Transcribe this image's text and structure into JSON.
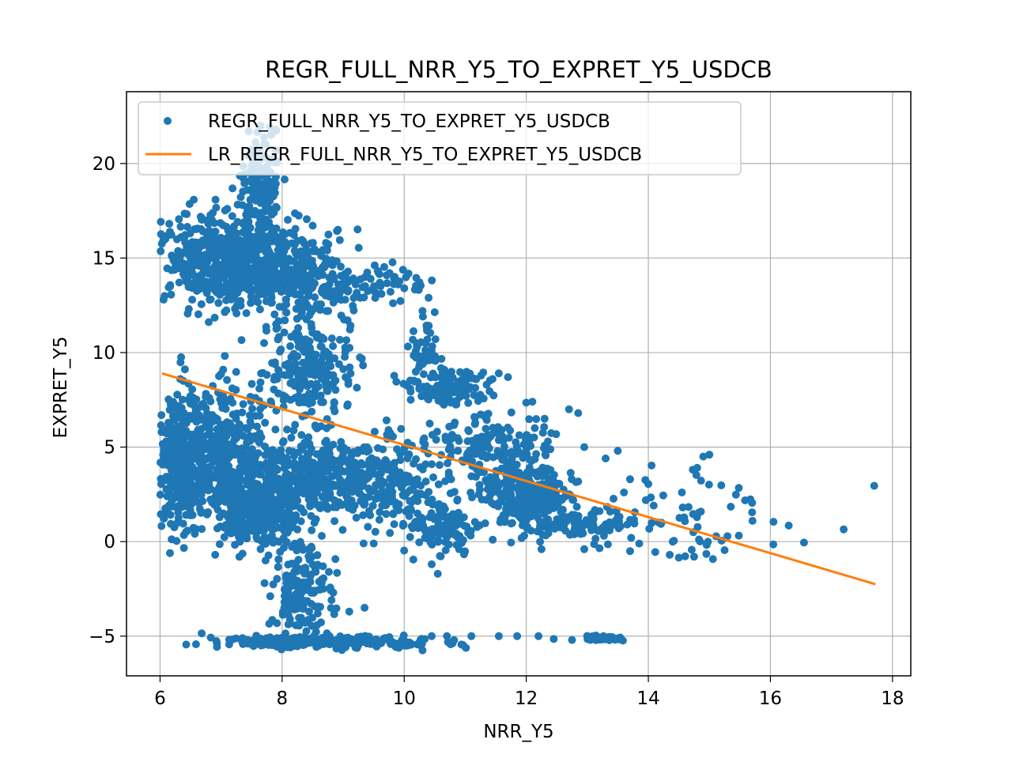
{
  "chart_data": {
    "type": "scatter",
    "title": "REGR_FULL_NRR_Y5_TO_EXPRET_Y5_USDCB",
    "xlabel": "NRR_Y5",
    "ylabel": "EXPRET_Y5",
    "xlim": [
      5.45,
      18.3
    ],
    "ylim": [
      -7.1,
      23.8
    ],
    "x_ticks": [
      6,
      8,
      10,
      12,
      14,
      16,
      18
    ],
    "y_ticks": [
      -5,
      0,
      5,
      10,
      15,
      20
    ],
    "x_tick_labels": [
      "6",
      "8",
      "10",
      "12",
      "14",
      "16",
      "18"
    ],
    "y_tick_labels": [
      "−5",
      "0",
      "5",
      "10",
      "15",
      "20"
    ],
    "grid": true,
    "legend_position": "top-left",
    "colors": {
      "scatter": "#1f77b4",
      "line": "#ff7f0e"
    },
    "series": [
      {
        "name": "REGR_FULL_NRR_Y5_TO_EXPRET_Y5_USDCB",
        "kind": "scatter",
        "clusters": [
          {
            "cx": 7.0,
            "cy": 14.8,
            "sx": 0.5,
            "sy": 1.2,
            "n": 520
          },
          {
            "cx": 7.65,
            "cy": 18.0,
            "sx": 0.18,
            "sy": 2.0,
            "n": 200
          },
          {
            "cx": 8.3,
            "cy": 14.2,
            "sx": 0.4,
            "sy": 1.2,
            "n": 260
          },
          {
            "cx": 9.3,
            "cy": 13.5,
            "sx": 0.5,
            "sy": 0.5,
            "n": 80
          },
          {
            "cx": 6.4,
            "cy": 4.0,
            "sx": 0.25,
            "sy": 1.6,
            "n": 420
          },
          {
            "cx": 7.0,
            "cy": 5.0,
            "sx": 0.4,
            "sy": 1.8,
            "n": 300
          },
          {
            "cx": 7.6,
            "cy": 2.0,
            "sx": 0.35,
            "sy": 1.2,
            "n": 420
          },
          {
            "cx": 8.6,
            "cy": 3.4,
            "sx": 0.6,
            "sy": 1.0,
            "n": 380
          },
          {
            "cx": 8.5,
            "cy": 9.0,
            "sx": 0.35,
            "sy": 1.2,
            "n": 220
          },
          {
            "cx": 9.8,
            "cy": 3.0,
            "sx": 0.5,
            "sy": 1.2,
            "n": 180
          },
          {
            "cx": 10.7,
            "cy": 8.2,
            "sx": 0.35,
            "sy": 0.5,
            "n": 130
          },
          {
            "cx": 10.3,
            "cy": 10.5,
            "sx": 0.12,
            "sy": 0.8,
            "n": 40
          },
          {
            "cx": 10.6,
            "cy": 1.0,
            "sx": 0.3,
            "sy": 0.7,
            "n": 110
          },
          {
            "cx": 11.4,
            "cy": 5.2,
            "sx": 0.5,
            "sy": 0.8,
            "n": 160
          },
          {
            "cx": 12.0,
            "cy": 2.5,
            "sx": 0.35,
            "sy": 0.8,
            "n": 300
          },
          {
            "cx": 12.8,
            "cy": 1.0,
            "sx": 0.5,
            "sy": 0.5,
            "n": 100
          },
          {
            "cx": 8.3,
            "cy": -2.5,
            "sx": 0.25,
            "sy": 1.3,
            "n": 170
          },
          {
            "cx": 8.7,
            "cy": -5.3,
            "sx": 0.9,
            "sy": 0.15,
            "n": 280
          },
          {
            "cx": 13.3,
            "cy": -5.1,
            "sx": 0.2,
            "sy": 0.08,
            "n": 35
          },
          {
            "cx": 14.6,
            "cy": 1.5,
            "sx": 0.5,
            "sy": 1.2,
            "n": 45
          }
        ],
        "points": [
          [
            17.7,
            2.95
          ],
          [
            17.2,
            0.65
          ],
          [
            16.55,
            -0.05
          ],
          [
            16.3,
            0.85
          ],
          [
            16.05,
            1.05
          ],
          [
            15.7,
            1.55
          ],
          [
            15.7,
            2.05
          ],
          [
            15.35,
            1.85
          ],
          [
            15.25,
            -0.45
          ],
          [
            15.0,
            4.6
          ],
          [
            14.9,
            4.5
          ],
          [
            14.8,
            3.9
          ],
          [
            14.55,
            2.6
          ],
          [
            14.0,
            3.05
          ],
          [
            13.7,
            3.3
          ],
          [
            13.6,
            2.6
          ],
          [
            13.5,
            4.8
          ],
          [
            13.3,
            4.4
          ],
          [
            12.95,
            5.0
          ],
          [
            12.85,
            6.8
          ],
          [
            12.7,
            7.0
          ],
          [
            12.3,
            6.5
          ],
          [
            12.1,
            7.4
          ],
          [
            12.0,
            7.35
          ],
          [
            11.7,
            8.7
          ],
          [
            11.55,
            8.9
          ],
          [
            11.35,
            8.3
          ],
          [
            10.35,
            9.95
          ],
          [
            10.35,
            10.5
          ],
          [
            10.3,
            12.2
          ],
          [
            10.4,
            12.9
          ],
          [
            10.0,
            13.4
          ],
          [
            9.9,
            13.6
          ],
          [
            9.6,
            13.7
          ],
          [
            9.45,
            13.9
          ],
          [
            9.2,
            13.8
          ],
          [
            9.05,
            13.3
          ],
          [
            8.75,
            12.2
          ],
          [
            8.45,
            10.6
          ],
          [
            8.25,
            9.8
          ],
          [
            7.9,
            20.7
          ],
          [
            7.65,
            22.0
          ],
          [
            7.5,
            19.2
          ],
          [
            7.35,
            17.8
          ],
          [
            7.1,
            17.6
          ],
          [
            6.4,
            16.1
          ],
          [
            6.05,
            15.9
          ],
          [
            6.05,
            4.6
          ],
          [
            6.1,
            5.3
          ],
          [
            8.6,
            -5.5
          ],
          [
            9.2,
            -5.6
          ],
          [
            10.05,
            -5.5
          ],
          [
            10.3,
            -5.75
          ],
          [
            10.45,
            -5.0
          ],
          [
            10.7,
            -5.0
          ],
          [
            11.1,
            -5.0
          ],
          [
            11.55,
            -5.0
          ],
          [
            11.85,
            -5.0
          ],
          [
            12.2,
            -5.0
          ],
          [
            12.45,
            -5.15
          ],
          [
            12.75,
            -5.2
          ],
          [
            13.05,
            -5.2
          ],
          [
            7.15,
            -5.2
          ],
          [
            7.35,
            -5.1
          ],
          [
            7.8,
            -5.1
          ],
          [
            9.1,
            -3.7
          ],
          [
            9.35,
            -3.5
          ],
          [
            8.55,
            -1.6
          ],
          [
            8.9,
            -1.65
          ],
          [
            8.65,
            0.3
          ],
          [
            9.5,
            -0.1
          ],
          [
            10.15,
            -0.95
          ],
          [
            10.45,
            -1.2
          ],
          [
            10.55,
            -1.7
          ],
          [
            10.9,
            -0.4
          ],
          [
            11.45,
            0.1
          ],
          [
            11.75,
            -0.05
          ],
          [
            12.25,
            -0.4
          ],
          [
            12.95,
            -0.4
          ],
          [
            13.2,
            -0.35
          ],
          [
            13.7,
            -0.5
          ],
          [
            13.85,
            -0.1
          ],
          [
            14.35,
            -0.7
          ],
          [
            14.5,
            -0.85
          ],
          [
            14.75,
            -0.8
          ],
          [
            14.95,
            -0.65
          ],
          [
            15.2,
            0.05
          ],
          [
            14.4,
            0.0
          ]
        ]
      },
      {
        "name": "LR_REGR_FULL_NRR_Y5_TO_EXPRET_Y5_USDCB",
        "kind": "line",
        "x": [
          6.03,
          17.72
        ],
        "y": [
          8.9,
          -2.25
        ]
      }
    ]
  }
}
